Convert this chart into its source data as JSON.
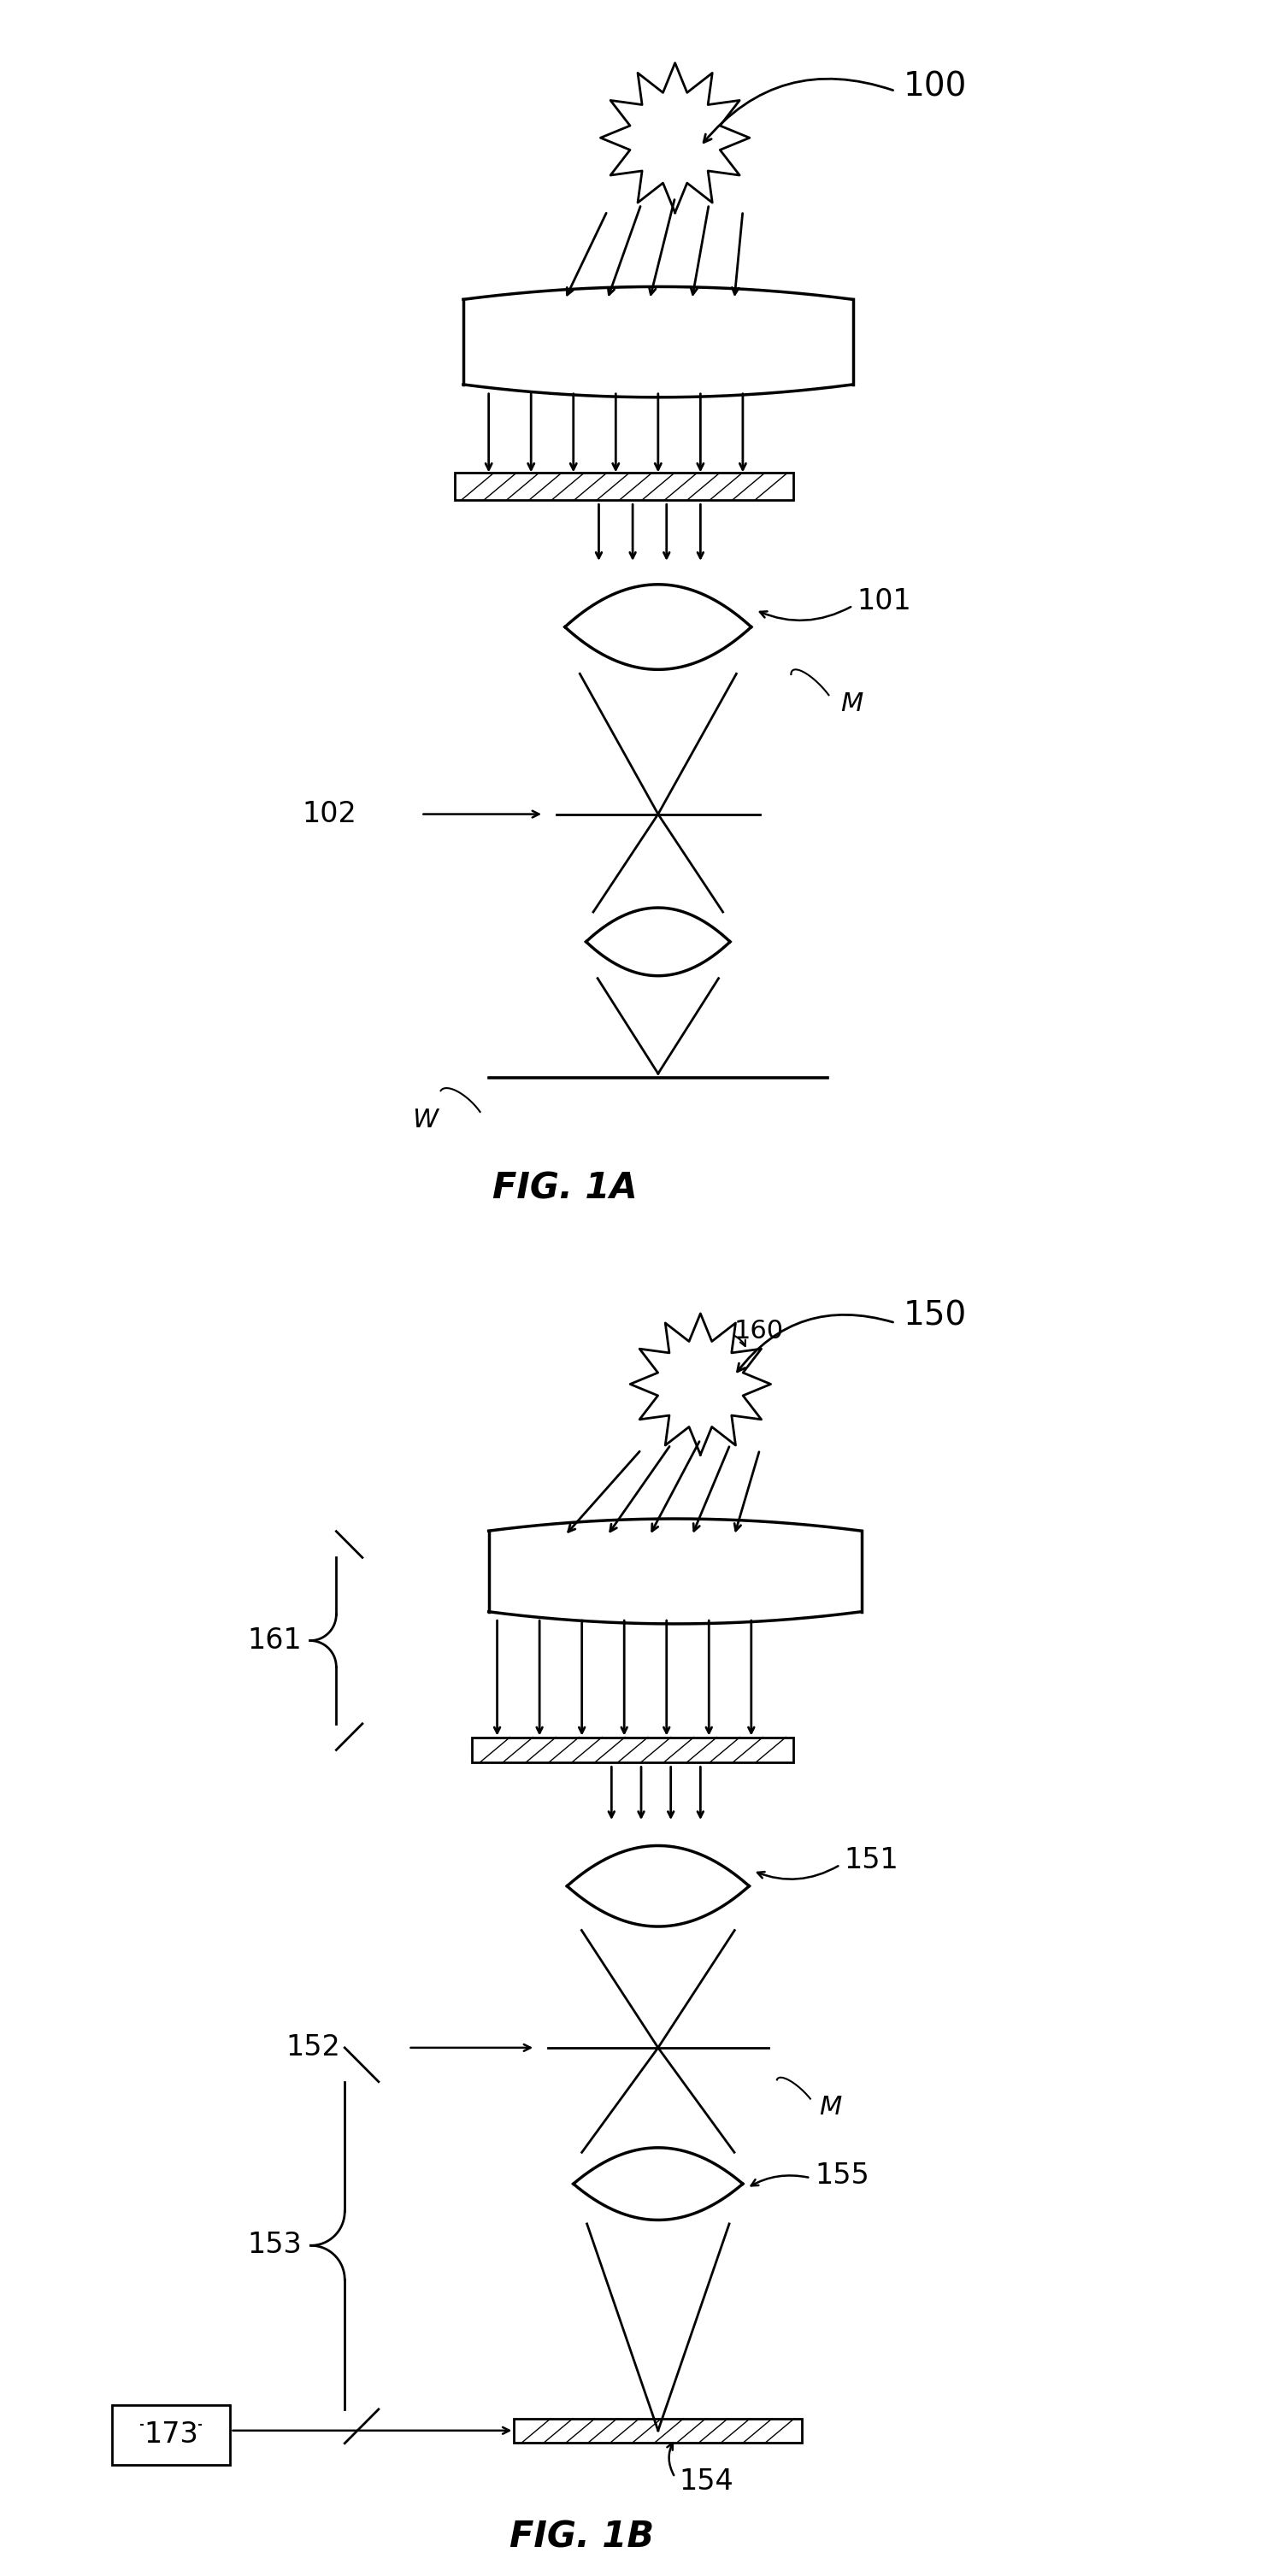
{
  "fig_width": 15.02,
  "fig_height": 30.14,
  "bg_color": "#ffffff",
  "fig1a_label": "FIG. 1A",
  "fig1b_label": "FIG. 1B",
  "label_100": "100",
  "label_101": "101",
  "label_102": "102",
  "label_M_1a": "M",
  "label_W_1a": "W",
  "label_150": "150",
  "label_151": "151",
  "label_152": "152",
  "label_153": "153",
  "label_154": "154",
  "label_155": "155",
  "label_160": "160",
  "label_161": "161",
  "label_173": "173",
  "label_M_1b": "M",
  "lw": 2.0,
  "lw_thick": 2.5
}
